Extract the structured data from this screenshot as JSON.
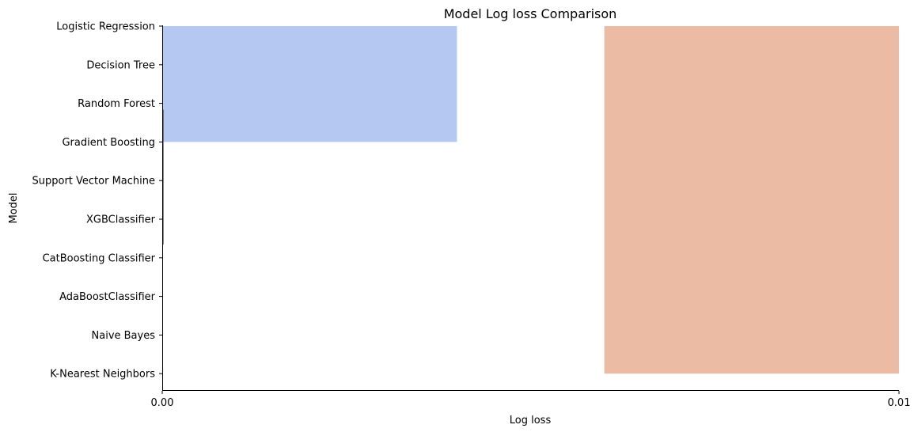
{
  "chart_data": {
    "type": "bar",
    "orientation": "horizontal",
    "title": "Model Log loss Comparison",
    "xlabel": "Log loss",
    "ylabel": "Model",
    "xlim": [
      0.0,
      0.01
    ],
    "xticks": [
      0.0,
      0.01
    ],
    "xtick_labels": [
      "0.00",
      "0.01"
    ],
    "categories": [
      "Logistic Regression",
      "Decision Tree",
      "Random Forest",
      "Gradient Boosting",
      "Support Vector Machine",
      "XGBClassifier",
      "CatBoosting Classifier",
      "AdaBoostClassifier",
      "Naive Bayes",
      "K-Nearest Neighbors"
    ],
    "bars": [
      {
        "start": 0.0,
        "end": 0.004,
        "from_index": 0,
        "to_index": 3,
        "color": "#b5c8f2"
      },
      {
        "start": 0.006,
        "end": 0.01,
        "from_index": 0,
        "to_index": 9,
        "color": "#ecbba4"
      }
    ],
    "error_line": {
      "value": 0.0,
      "from_index": 2,
      "to_index": 5,
      "color": "#222222"
    },
    "grid": false,
    "legend": "none"
  }
}
